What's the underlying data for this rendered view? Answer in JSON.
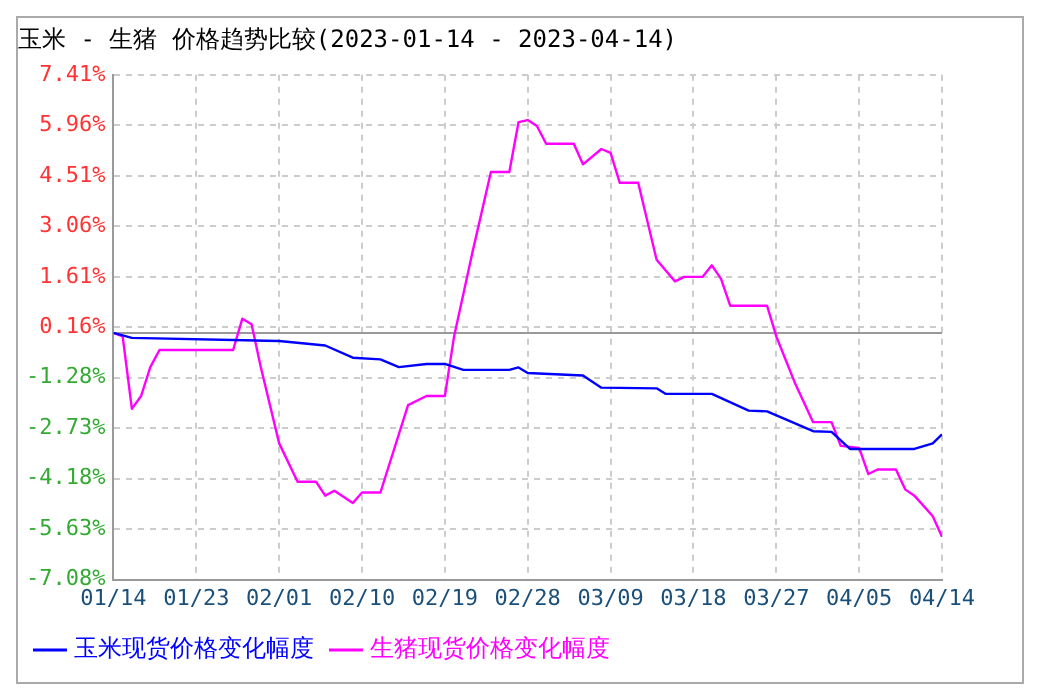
{
  "chart_data": {
    "type": "line",
    "title": "玉米 - 生猪 价格趋势比较(2023-01-14 - 2023-04-14)",
    "xlim": [
      "2023-01-14",
      "2023-04-14"
    ],
    "xticks": [
      {
        "value": "2023-01-14",
        "label": "01/14"
      },
      {
        "value": "2023-01-23",
        "label": "01/23"
      },
      {
        "value": "2023-02-01",
        "label": "02/01"
      },
      {
        "value": "2023-02-10",
        "label": "02/10"
      },
      {
        "value": "2023-02-19",
        "label": "02/19"
      },
      {
        "value": "2023-02-28",
        "label": "02/28"
      },
      {
        "value": "2023-03-09",
        "label": "03/09"
      },
      {
        "value": "2023-03-18",
        "label": "03/18"
      },
      {
        "value": "2023-03-27",
        "label": "03/27"
      },
      {
        "value": "2023-04-05",
        "label": "04/05"
      },
      {
        "value": "2023-04-14",
        "label": "04/14"
      }
    ],
    "ylim": [
      -7.08,
      7.41
    ],
    "yticks": [
      {
        "value": 7.41,
        "label": "7.41%"
      },
      {
        "value": 5.96,
        "label": "5.96%"
      },
      {
        "value": 4.51,
        "label": "4.51%"
      },
      {
        "value": 3.06,
        "label": "3.06%"
      },
      {
        "value": 1.61,
        "label": "1.61%"
      },
      {
        "value": 0.16,
        "label": "0.16%"
      },
      {
        "value": -1.28,
        "label": "-1.28%"
      },
      {
        "value": -2.73,
        "label": "-2.73%"
      },
      {
        "value": -4.18,
        "label": "-4.18%"
      },
      {
        "value": -5.63,
        "label": "-5.63%"
      },
      {
        "value": -7.08,
        "label": "-7.08%"
      }
    ],
    "grid": true,
    "legend": "bottom",
    "marker": "none",
    "line_style": "solid",
    "ref_lines": [
      {
        "axis": "y",
        "value": 0,
        "color": "#999999"
      }
    ],
    "series": [
      {
        "name": "玉米现货价格变化幅度",
        "color": "#0000ff",
        "x": [
          "2023-01-14",
          "2023-01-16",
          "2023-02-01",
          "2023-02-06",
          "2023-02-09",
          "2023-02-12",
          "2023-02-14",
          "2023-02-17",
          "2023-02-19",
          "2023-02-21",
          "2023-02-26",
          "2023-02-27",
          "2023-02-28",
          "2023-03-06",
          "2023-03-08",
          "2023-03-14",
          "2023-03-15",
          "2023-03-20",
          "2023-03-24",
          "2023-03-26",
          "2023-03-31",
          "2023-04-02",
          "2023-04-04",
          "2023-04-11",
          "2023-04-13",
          "2023-04-14"
        ],
        "values": [
          0,
          -0.14,
          -0.23,
          -0.36,
          -0.71,
          -0.76,
          -0.98,
          -0.89,
          -0.89,
          -1.06,
          -1.06,
          -0.99,
          -1.15,
          -1.22,
          -1.57,
          -1.59,
          -1.75,
          -1.75,
          -2.23,
          -2.25,
          -2.82,
          -2.84,
          -3.33,
          -3.33,
          -3.17,
          -2.91
        ]
      },
      {
        "name": "生猪现货价格变化幅度",
        "color": "#ff00ff",
        "x": [
          "2023-01-14",
          "2023-01-15",
          "2023-01-16",
          "2023-01-17",
          "2023-01-18",
          "2023-01-19",
          "2023-01-27",
          "2023-01-28",
          "2023-01-29",
          "2023-01-30",
          "2023-02-01",
          "2023-02-03",
          "2023-02-05",
          "2023-02-06",
          "2023-02-07",
          "2023-02-09",
          "2023-02-10",
          "2023-02-12",
          "2023-02-15",
          "2023-02-17",
          "2023-02-19",
          "2023-02-20",
          "2023-02-22",
          "2023-02-24",
          "2023-02-26",
          "2023-02-27",
          "2023-02-28",
          "2023-03-01",
          "2023-03-02",
          "2023-03-05",
          "2023-03-06",
          "2023-03-08",
          "2023-03-09",
          "2023-03-10",
          "2023-03-12",
          "2023-03-14",
          "2023-03-16",
          "2023-03-17",
          "2023-03-19",
          "2023-03-20",
          "2023-03-21",
          "2023-03-22",
          "2023-03-26",
          "2023-03-27",
          "2023-03-29",
          "2023-03-31",
          "2023-04-02",
          "2023-04-03",
          "2023-04-05",
          "2023-04-06",
          "2023-04-07",
          "2023-04-09",
          "2023-04-10",
          "2023-04-11",
          "2023-04-13",
          "2023-04-14"
        ],
        "values": [
          0,
          -0.1,
          -2.18,
          -1.81,
          -0.98,
          -0.49,
          -0.49,
          0.41,
          0.25,
          -0.98,
          -3.17,
          -4.27,
          -4.27,
          -4.67,
          -4.53,
          -4.88,
          -4.58,
          -4.58,
          -2.07,
          -1.81,
          -1.81,
          -0.1,
          2.32,
          4.62,
          4.62,
          6.05,
          6.11,
          5.94,
          5.43,
          5.43,
          4.84,
          5.28,
          5.17,
          4.31,
          4.31,
          2.1,
          1.48,
          1.61,
          1.61,
          1.94,
          1.55,
          0.78,
          0.78,
          -0.1,
          -1.42,
          -2.56,
          -2.56,
          -3.24,
          -3.3,
          -4.05,
          -3.92,
          -3.92,
          -4.49,
          -4.67,
          -5.26,
          -5.85
        ]
      }
    ]
  }
}
